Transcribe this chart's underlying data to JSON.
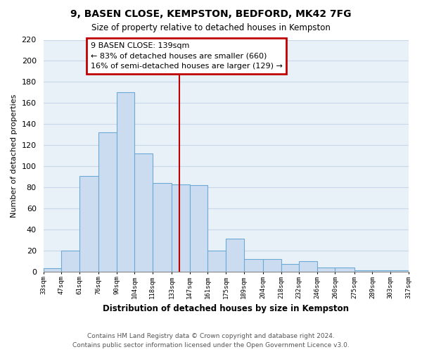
{
  "title": "9, BASEN CLOSE, KEMPSTON, BEDFORD, MK42 7FG",
  "subtitle": "Size of property relative to detached houses in Kempston",
  "xlabel": "Distribution of detached houses by size in Kempston",
  "ylabel": "Number of detached properties",
  "bar_left_edges": [
    33,
    47,
    61,
    76,
    90,
    104,
    118,
    133,
    147,
    161,
    175,
    189,
    204,
    218,
    232,
    246,
    260,
    275,
    289,
    303
  ],
  "bar_widths": [
    14,
    14,
    15,
    14,
    14,
    14,
    15,
    14,
    14,
    14,
    14,
    15,
    14,
    14,
    14,
    14,
    15,
    14,
    14,
    14
  ],
  "bar_heights": [
    3,
    20,
    91,
    132,
    170,
    112,
    84,
    83,
    82,
    20,
    31,
    12,
    12,
    7,
    10,
    4,
    4,
    1,
    1,
    1
  ],
  "bar_color": "#ccdcf0",
  "bar_edgecolor": "#6aaad4",
  "tick_labels": [
    "33sqm",
    "47sqm",
    "61sqm",
    "76sqm",
    "90sqm",
    "104sqm",
    "118sqm",
    "133sqm",
    "147sqm",
    "161sqm",
    "175sqm",
    "189sqm",
    "204sqm",
    "218sqm",
    "232sqm",
    "246sqm",
    "260sqm",
    "275sqm",
    "289sqm",
    "303sqm",
    "317sqm"
  ],
  "ylim": [
    0,
    220
  ],
  "yticks": [
    0,
    20,
    40,
    60,
    80,
    100,
    120,
    140,
    160,
    180,
    200,
    220
  ],
  "vline_x": 139,
  "vline_color": "#c00000",
  "annotation_title": "9 BASEN CLOSE: 139sqm",
  "annotation_line1": "← 83% of detached houses are smaller (660)",
  "annotation_line2": "16% of semi-detached houses are larger (129) →",
  "annotation_box_color": "#c00000",
  "annotation_box_fill": "#ffffff",
  "footer1": "Contains HM Land Registry data © Crown copyright and database right 2024.",
  "footer2": "Contains public sector information licensed under the Open Government Licence v3.0.",
  "background_color": "#ffffff",
  "plot_bg_color": "#e8f0f8",
  "grid_color": "#c8d8e8"
}
